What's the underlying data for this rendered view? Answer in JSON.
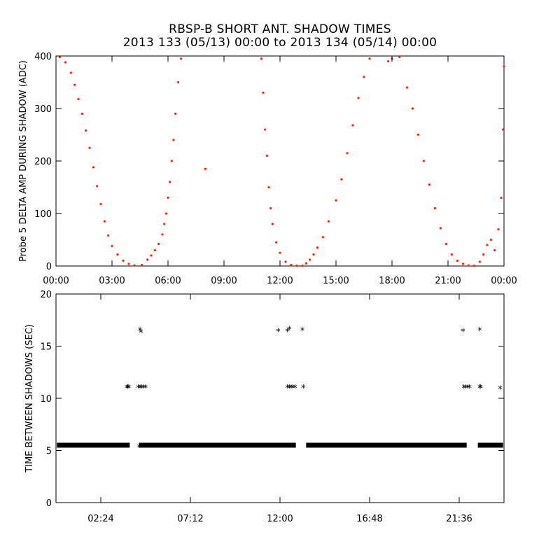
{
  "title": {
    "line1": "RBSP-B SHORT ANT. SHADOW TIMES",
    "line2": "2013 133 (05/13) 00:00 to 2013 134 (05/14) 00:00"
  },
  "colors": {
    "top_series": "#ff2200",
    "bottom_series": "#000000",
    "axes": "#000000"
  },
  "chart_data": [
    {
      "type": "scatter",
      "id": "top",
      "ylabel": "Probe 5 DELTA AMP DURING SHADOW (ADC)",
      "xlim": [
        0,
        24
      ],
      "ylim": [
        0,
        400
      ],
      "yticks": [
        0,
        100,
        200,
        300,
        400
      ],
      "ytick_labels": [
        "0",
        "100",
        "200",
        "300",
        "400"
      ],
      "xticks": [
        0,
        3,
        6,
        9,
        12,
        15,
        18,
        21,
        24
      ],
      "xtick_labels": [
        "00:00",
        "03:00",
        "06:00",
        "09:00",
        "12:00",
        "15:00",
        "18:00",
        "21:00",
        "00:00"
      ],
      "series": [
        {
          "name": "Probe 5 delta amp",
          "marker": "dot",
          "color": "#ff2200",
          "points": [
            [
              0.2,
              398
            ],
            [
              0.5,
              388
            ],
            [
              0.8,
              368
            ],
            [
              1.0,
              345
            ],
            [
              1.2,
              318
            ],
            [
              1.4,
              290
            ],
            [
              1.6,
              258
            ],
            [
              1.8,
              225
            ],
            [
              2.0,
              188
            ],
            [
              2.2,
              152
            ],
            [
              2.4,
              118
            ],
            [
              2.6,
              85
            ],
            [
              2.8,
              58
            ],
            [
              3.0,
              38
            ],
            [
              3.3,
              22
            ],
            [
              3.6,
              10
            ],
            [
              3.9,
              4
            ],
            [
              4.2,
              1
            ],
            [
              4.6,
              2
            ],
            [
              4.9,
              12
            ],
            [
              5.1,
              20
            ],
            [
              5.3,
              30
            ],
            [
              5.5,
              42
            ],
            [
              5.7,
              60
            ],
            [
              5.8,
              80
            ],
            [
              5.9,
              100
            ],
            [
              6.0,
              130
            ],
            [
              6.1,
              160
            ],
            [
              6.2,
              200
            ],
            [
              6.3,
              240
            ],
            [
              6.4,
              290
            ],
            [
              6.55,
              350
            ],
            [
              6.7,
              395
            ],
            [
              8.0,
              185
            ],
            [
              11.0,
              395
            ],
            [
              11.1,
              330
            ],
            [
              11.2,
              260
            ],
            [
              11.3,
              210
            ],
            [
              11.4,
              150
            ],
            [
              11.5,
              110
            ],
            [
              11.6,
              80
            ],
            [
              11.8,
              45
            ],
            [
              12.0,
              25
            ],
            [
              12.3,
              8
            ],
            [
              12.6,
              2
            ],
            [
              12.9,
              0.5
            ],
            [
              13.2,
              0.5
            ],
            [
              13.4,
              5
            ],
            [
              13.6,
              12
            ],
            [
              13.8,
              22
            ],
            [
              14.0,
              35
            ],
            [
              14.3,
              55
            ],
            [
              14.6,
              85
            ],
            [
              15.0,
              125
            ],
            [
              15.3,
              165
            ],
            [
              15.6,
              215
            ],
            [
              15.9,
              268
            ],
            [
              16.2,
              320
            ],
            [
              16.5,
              360
            ],
            [
              16.8,
              395
            ],
            [
              17.8,
              390
            ],
            [
              18.0,
              395
            ],
            [
              18.4,
              398
            ],
            [
              18.8,
              340
            ],
            [
              19.1,
              300
            ],
            [
              19.4,
              250
            ],
            [
              19.7,
              200
            ],
            [
              20.0,
              155
            ],
            [
              20.3,
              110
            ],
            [
              20.6,
              72
            ],
            [
              20.9,
              42
            ],
            [
              21.2,
              22
            ],
            [
              21.5,
              10
            ],
            [
              21.8,
              4
            ],
            [
              22.1,
              1
            ],
            [
              22.4,
              0.5
            ],
            [
              22.7,
              8
            ],
            [
              22.9,
              22
            ],
            [
              23.1,
              40
            ],
            [
              23.3,
              50
            ],
            [
              23.5,
              30
            ],
            [
              23.7,
              70
            ],
            [
              23.85,
              130
            ],
            [
              23.95,
              260
            ],
            [
              24.0,
              380
            ]
          ]
        }
      ]
    },
    {
      "type": "scatter",
      "id": "bottom",
      "ylabel": "TIME BETWEEN SHADOWS (SEC)",
      "xlim": [
        0,
        24
      ],
      "ylim": [
        0,
        20
      ],
      "yticks": [
        0,
        5,
        10,
        15,
        20
      ],
      "ytick_labels": [
        "0",
        "5",
        "10",
        "15",
        "20"
      ],
      "xticks": [
        2.4,
        7.2,
        12.0,
        16.8,
        21.6
      ],
      "xtick_labels": [
        "02:24",
        "07:12",
        "12:00",
        "16:48",
        "21:36"
      ],
      "series": [
        {
          "name": "baseline",
          "marker": "asterisk",
          "color": "#000000",
          "segments": [
            [
              0.05,
              3.95,
              5.5
            ],
            [
              4.45,
              12.85,
              5.5
            ],
            [
              13.4,
              22.0,
              5.5
            ],
            [
              22.6,
              23.95,
              5.5
            ]
          ],
          "points": [
            [
              3.8,
              11.0
            ],
            [
              3.85,
              11.0
            ],
            [
              3.9,
              11.0
            ],
            [
              4.4,
              11.0
            ],
            [
              4.5,
              11.0
            ],
            [
              4.6,
              11.0
            ],
            [
              4.7,
              11.0
            ],
            [
              4.8,
              11.0
            ],
            [
              4.5,
              16.5
            ],
            [
              4.55,
              16.3
            ],
            [
              4.45,
              5.3
            ],
            [
              11.9,
              16.4
            ],
            [
              12.4,
              16.4
            ],
            [
              12.5,
              16.6
            ],
            [
              12.4,
              11.0
            ],
            [
              12.5,
              11.0
            ],
            [
              12.6,
              11.0
            ],
            [
              12.7,
              11.0
            ],
            [
              12.8,
              11.0
            ],
            [
              13.2,
              16.5
            ],
            [
              13.25,
              11.0
            ],
            [
              21.8,
              16.4
            ],
            [
              21.85,
              11.0
            ],
            [
              21.95,
              11.0
            ],
            [
              22.05,
              11.0
            ],
            [
              22.15,
              11.0
            ],
            [
              22.7,
              16.5
            ],
            [
              22.7,
              11.0
            ],
            [
              22.75,
              11.0
            ],
            [
              23.8,
              10.9
            ]
          ]
        }
      ]
    }
  ]
}
